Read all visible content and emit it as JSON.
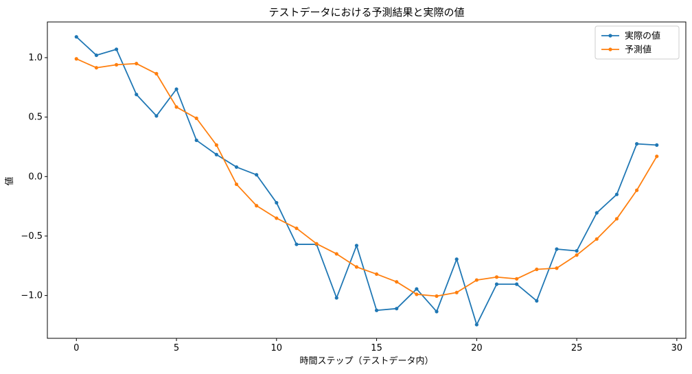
{
  "chart_data": {
    "type": "line",
    "title": "テストデータにおける予測結果と実際の値",
    "xlabel": "時間ステップ（テストデータ内）",
    "ylabel": "値",
    "xlim": [
      -1.45,
      30.45
    ],
    "ylim": [
      -1.36,
      1.3
    ],
    "xticks": [
      0,
      5,
      10,
      15,
      20,
      25,
      30
    ],
    "yticks": [
      -1.0,
      -0.5,
      0.0,
      0.5,
      1.0
    ],
    "ytick_labels": [
      "−1.0",
      "−0.5",
      "0.0",
      "0.5",
      "1.0"
    ],
    "grid": false,
    "legend_position": "top-right",
    "x": [
      0,
      1,
      2,
      3,
      4,
      5,
      6,
      7,
      8,
      9,
      10,
      11,
      12,
      13,
      14,
      15,
      16,
      17,
      18,
      19,
      20,
      21,
      22,
      23,
      24,
      25,
      26,
      27,
      28,
      29
    ],
    "series": [
      {
        "name": "実際の値",
        "color": "#1f77b4",
        "values": [
          1.175,
          1.02,
          1.07,
          0.69,
          0.51,
          0.735,
          0.305,
          0.185,
          0.08,
          0.015,
          -0.22,
          -0.57,
          -0.57,
          -1.02,
          -0.58,
          -1.125,
          -1.11,
          -0.945,
          -1.135,
          -0.695,
          -1.245,
          -0.905,
          -0.905,
          -1.045,
          -0.61,
          -0.625,
          -0.305,
          -0.15,
          0.275,
          0.265
        ]
      },
      {
        "name": "予測値",
        "color": "#ff7f0e",
        "values": [
          0.99,
          0.915,
          0.94,
          0.95,
          0.865,
          0.585,
          0.49,
          0.265,
          -0.065,
          -0.245,
          -0.35,
          -0.435,
          -0.565,
          -0.65,
          -0.76,
          -0.82,
          -0.885,
          -0.99,
          -1.005,
          -0.975,
          -0.87,
          -0.845,
          -0.86,
          -0.78,
          -0.77,
          -0.66,
          -0.525,
          -0.355,
          -0.115,
          0.17
        ]
      }
    ]
  }
}
